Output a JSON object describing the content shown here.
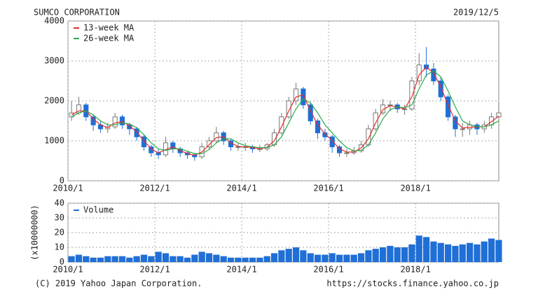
{
  "chart_data": [
    {
      "type": "candlestick",
      "title": "SUMCO CORPORATION",
      "date": "2019/12/5",
      "x": [
        "2010/1",
        "2010/3",
        "2010/5",
        "2010/7",
        "2010/9",
        "2010/11",
        "2011/1",
        "2011/3",
        "2011/5",
        "2011/7",
        "2011/9",
        "2011/11",
        "2012/1",
        "2012/3",
        "2012/5",
        "2012/7",
        "2012/9",
        "2012/11",
        "2013/1",
        "2013/3",
        "2013/5",
        "2013/7",
        "2013/9",
        "2013/11",
        "2014/1",
        "2014/3",
        "2014/5",
        "2014/7",
        "2014/9",
        "2014/11",
        "2015/1",
        "2015/3",
        "2015/5",
        "2015/7",
        "2015/9",
        "2015/11",
        "2016/1",
        "2016/3",
        "2016/5",
        "2016/7",
        "2016/9",
        "2016/11",
        "2017/1",
        "2017/3",
        "2017/5",
        "2017/7",
        "2017/9",
        "2017/11",
        "2018/1",
        "2018/3",
        "2018/5",
        "2018/7",
        "2018/9",
        "2018/11",
        "2019/1",
        "2019/3",
        "2019/5",
        "2019/7",
        "2019/9",
        "2019/11"
      ],
      "open": [
        1600,
        1700,
        1900,
        1600,
        1400,
        1300,
        1350,
        1600,
        1400,
        1300,
        1100,
        850,
        700,
        650,
        950,
        800,
        700,
        650,
        600,
        850,
        1000,
        1200,
        1000,
        850,
        850,
        850,
        800,
        800,
        900,
        1200,
        1600,
        2000,
        2300,
        1900,
        1500,
        1200,
        1100,
        850,
        700,
        700,
        750,
        900,
        1300,
        1700,
        1900,
        1900,
        1800,
        1800,
        2500,
        2900,
        2800,
        2500,
        2100,
        1600,
        1300,
        1300,
        1400,
        1300,
        1400,
        1600
      ],
      "high": [
        2000,
        2100,
        1950,
        1650,
        1500,
        1450,
        1700,
        1650,
        1450,
        1350,
        1150,
        900,
        800,
        1100,
        1000,
        850,
        750,
        700,
        950,
        1100,
        1350,
        1250,
        1050,
        950,
        950,
        900,
        900,
        950,
        1300,
        1700,
        2100,
        2450,
        2350,
        1950,
        1550,
        1300,
        1150,
        900,
        800,
        850,
        1000,
        1400,
        1800,
        2050,
        2000,
        1950,
        1900,
        2600,
        3200,
        3350,
        2950,
        2600,
        2150,
        1650,
        1450,
        1500,
        1450,
        1500,
        1700,
        1950
      ],
      "low": [
        1500,
        1650,
        1500,
        1250,
        1200,
        1200,
        1300,
        1300,
        1150,
        1000,
        750,
        600,
        550,
        600,
        700,
        600,
        550,
        500,
        550,
        800,
        950,
        900,
        750,
        750,
        750,
        700,
        720,
        750,
        850,
        1150,
        1550,
        1900,
        1800,
        1400,
        1050,
        1000,
        700,
        600,
        600,
        650,
        700,
        850,
        1250,
        1650,
        1750,
        1700,
        1650,
        1750,
        2400,
        2600,
        2400,
        2000,
        1500,
        1100,
        1100,
        1150,
        1150,
        1200,
        1300,
        1550
      ],
      "close": [
        1700,
        1900,
        1600,
        1400,
        1300,
        1350,
        1600,
        1400,
        1300,
        1100,
        850,
        700,
        650,
        950,
        800,
        700,
        650,
        600,
        850,
        1000,
        1200,
        1000,
        850,
        850,
        850,
        800,
        800,
        900,
        1200,
        1600,
        2000,
        2300,
        1900,
        1500,
        1200,
        1100,
        850,
        700,
        700,
        750,
        900,
        1300,
        1700,
        1900,
        1900,
        1800,
        1800,
        2500,
        2900,
        2800,
        2500,
        2100,
        1600,
        1300,
        1300,
        1400,
        1300,
        1400,
        1600,
        1700
      ],
      "up_color": "#ffffff",
      "down_color": "#1f6fd6",
      "edge_color": "#777777",
      "series": [
        {
          "name": "13-week MA",
          "color": "#e03030",
          "values": [
            1650,
            1750,
            1750,
            1550,
            1400,
            1330,
            1450,
            1480,
            1380,
            1220,
            1000,
            800,
            700,
            780,
            850,
            760,
            680,
            640,
            720,
            900,
            1080,
            1100,
            950,
            860,
            850,
            830,
            800,
            840,
            1000,
            1350,
            1750,
            2100,
            2150,
            1750,
            1400,
            1180,
            1000,
            800,
            720,
            720,
            820,
            1050,
            1450,
            1780,
            1880,
            1850,
            1800,
            2100,
            2650,
            2850,
            2700,
            2350,
            1900,
            1500,
            1320,
            1340,
            1350,
            1350,
            1480,
            1620
          ]
        },
        {
          "name": "26-week MA",
          "color": "#2aa84a",
          "values": [
            1600,
            1700,
            1750,
            1650,
            1500,
            1400,
            1400,
            1450,
            1420,
            1330,
            1150,
            950,
            800,
            760,
            800,
            800,
            740,
            680,
            680,
            780,
            950,
            1050,
            1050,
            950,
            880,
            850,
            830,
            830,
            900,
            1100,
            1450,
            1800,
            2050,
            1950,
            1700,
            1400,
            1200,
            1000,
            830,
            750,
            760,
            900,
            1200,
            1550,
            1780,
            1850,
            1830,
            1900,
            2300,
            2650,
            2750,
            2600,
            2250,
            1850,
            1500,
            1400,
            1360,
            1350,
            1400,
            1500
          ]
        }
      ],
      "xlim": [
        "2010/1",
        "2019/12"
      ],
      "xticks": [
        "2010/1",
        "2012/1",
        "2014/1",
        "2016/1",
        "2018/1"
      ],
      "ylim": [
        0,
        4000
      ],
      "yticks": [
        0,
        1000,
        2000,
        3000,
        4000
      ],
      "grid": true,
      "legend": "upper left"
    },
    {
      "type": "bar",
      "y_label": "(x10000000)",
      "x": [
        "2010/1",
        "2010/3",
        "2010/5",
        "2010/7",
        "2010/9",
        "2010/11",
        "2011/1",
        "2011/3",
        "2011/5",
        "2011/7",
        "2011/9",
        "2011/11",
        "2012/1",
        "2012/3",
        "2012/5",
        "2012/7",
        "2012/9",
        "2012/11",
        "2013/1",
        "2013/3",
        "2013/5",
        "2013/7",
        "2013/9",
        "2013/11",
        "2014/1",
        "2014/3",
        "2014/5",
        "2014/7",
        "2014/9",
        "2014/11",
        "2015/1",
        "2015/3",
        "2015/5",
        "2015/7",
        "2015/9",
        "2015/11",
        "2016/1",
        "2016/3",
        "2016/5",
        "2016/7",
        "2016/9",
        "2016/11",
        "2017/1",
        "2017/3",
        "2017/5",
        "2017/7",
        "2017/9",
        "2017/11",
        "2018/1",
        "2018/3",
        "2018/5",
        "2018/7",
        "2018/9",
        "2018/11",
        "2019/1",
        "2019/3",
        "2019/5",
        "2019/7",
        "2019/9",
        "2019/11"
      ],
      "series": [
        {
          "name": "Volume",
          "color": "#1f6fd6",
          "values": [
            4,
            5,
            4,
            3,
            3,
            4,
            4,
            4,
            3,
            4,
            5,
            4,
            7,
            6,
            4,
            4,
            3,
            5,
            7,
            6,
            5,
            4,
            3,
            3,
            3,
            3,
            3,
            4,
            6,
            8,
            9,
            10,
            8,
            6,
            5,
            5,
            6,
            5,
            5,
            5,
            6,
            8,
            9,
            10,
            11,
            10,
            10,
            12,
            18,
            17,
            14,
            13,
            12,
            11,
            12,
            13,
            12,
            14,
            16,
            15
          ]
        }
      ],
      "xlim": [
        "2010/1",
        "2019/12"
      ],
      "xticks": [
        "2010/1",
        "2012/1",
        "2014/1",
        "2016/1",
        "2018/1"
      ],
      "ylim": [
        0,
        40
      ],
      "yticks": [
        0,
        10,
        20,
        30,
        40
      ],
      "grid": true,
      "legend": "upper left"
    }
  ],
  "footer": {
    "copyright": "(C) 2019 Yahoo Japan Corporation.",
    "url": "https://stocks.finance.yahoo.co.jp"
  }
}
